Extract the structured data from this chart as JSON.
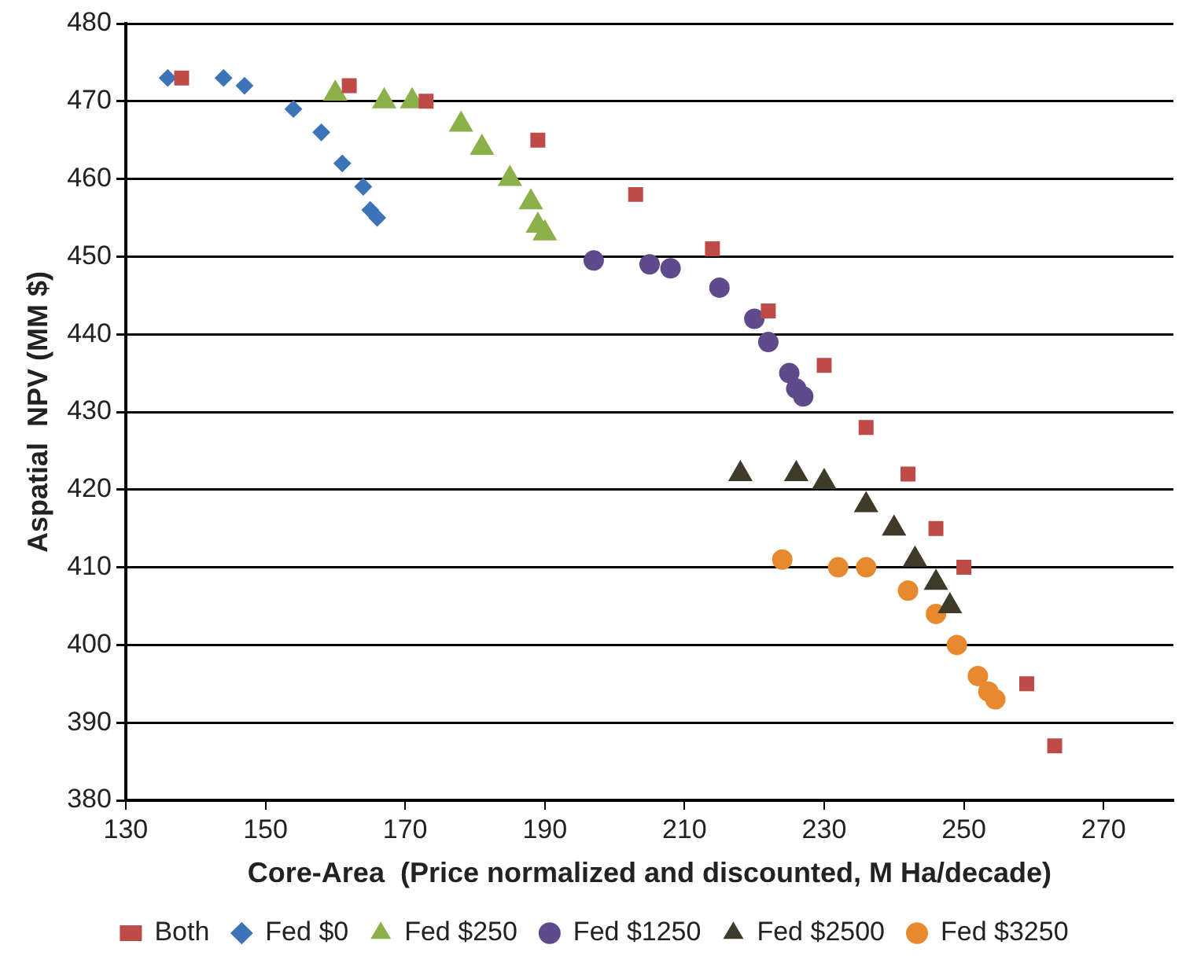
{
  "chart_data": {
    "type": "scatter",
    "xlabel": "Core-Area  (Price normalized and discounted, M Ha/decade)",
    "ylabel": "Aspatial  NPV (MM $)",
    "xlim": [
      130,
      280
    ],
    "xticks": [
      130,
      150,
      170,
      190,
      210,
      230,
      250,
      270
    ],
    "ylim": [
      380,
      480
    ],
    "yticks": [
      380,
      390,
      400,
      410,
      420,
      430,
      440,
      450,
      460,
      470,
      480
    ],
    "grid": "y",
    "legend": "bottom",
    "series": [
      {
        "name": "Both",
        "color": "#be4b48",
        "marker": "square",
        "x": [
          138,
          162,
          173,
          189,
          203,
          214,
          222,
          230,
          236,
          242,
          246,
          250,
          259,
          263
        ],
        "values": [
          473,
          472,
          470,
          465,
          458,
          451,
          443,
          436,
          428,
          422,
          415,
          410,
          395,
          387
        ]
      },
      {
        "name": "Fed $0",
        "color": "#3d74b8",
        "marker": "diamond",
        "x": [
          136,
          144,
          147,
          154,
          158,
          161,
          164,
          165,
          166
        ],
        "values": [
          473,
          473,
          472,
          469,
          466,
          462,
          459,
          456,
          455
        ]
      },
      {
        "name": "Fed $250",
        "color": "#8cb04a",
        "marker": "triangle",
        "x": [
          160,
          167,
          171,
          178,
          181,
          185,
          188,
          189,
          190
        ],
        "values": [
          471,
          470,
          470,
          467,
          464,
          460,
          457,
          454,
          453
        ]
      },
      {
        "name": "Fed $1250",
        "color": "#5f4b8b",
        "marker": "circle",
        "x": [
          197,
          205,
          208,
          215,
          220,
          222,
          225,
          226,
          227
        ],
        "values": [
          449.5,
          449,
          448.5,
          446,
          442,
          439,
          435,
          433,
          432
        ]
      },
      {
        "name": "Fed $2500",
        "color": "#3f3b2b",
        "marker": "triangle",
        "x": [
          218,
          226,
          230,
          236,
          240,
          243,
          246,
          248
        ],
        "values": [
          422,
          422,
          421,
          418,
          415,
          411,
          408,
          405
        ]
      },
      {
        "name": "Fed $3250",
        "color": "#e8892f",
        "marker": "circle",
        "x": [
          224,
          232,
          236,
          242,
          246,
          249,
          252,
          253.5,
          254.5
        ],
        "values": [
          411,
          410,
          410,
          407,
          404,
          400,
          396,
          394,
          393
        ]
      }
    ]
  }
}
